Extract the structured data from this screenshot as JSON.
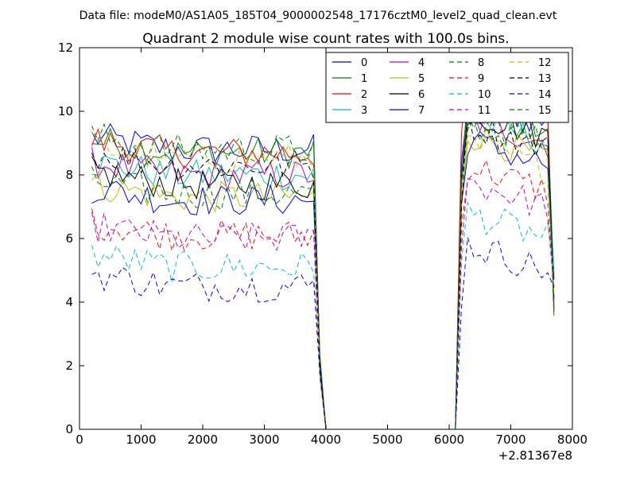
{
  "chart_data": {
    "type": "line",
    "supertitle": "Data file: modeM0/AS1A05_185T04_9000002548_17176cztM0_level2_quad_clean.evt",
    "title": "Quadrant 2 module wise count rates with 100.0s bins.",
    "xlabel": "",
    "ylabel": "",
    "x_offset_label": "+2.81367e8",
    "xlim": [
      0,
      8000
    ],
    "ylim": [
      0,
      12
    ],
    "x_ticks": [
      0,
      1000,
      2000,
      3000,
      4000,
      5000,
      6000,
      7000,
      8000
    ],
    "y_ticks": [
      0,
      2,
      4,
      6,
      8,
      10,
      12
    ],
    "legend_position": "top-right",
    "segments": [
      {
        "x_start": 200,
        "x_end": 3800,
        "step": 100
      },
      {
        "x_start": 6300,
        "x_end": 7600,
        "step": 100
      }
    ],
    "gap": {
      "x": [
        3900,
        4000,
        4100,
        6000,
        6100,
        6200
      ],
      "y": [
        2.0,
        0.0,
        0.0,
        0.0,
        0.0,
        8.5
      ]
    },
    "end": {
      "x": [
        7700
      ],
      "y_drop": 3.5
    },
    "series": [
      {
        "name": "0",
        "color": "#0000ff",
        "dash": "solid",
        "level1": 8.8,
        "level2": 9.6
      },
      {
        "name": "1",
        "color": "#008000",
        "dash": "solid",
        "level1": 8.7,
        "level2": 9.5
      },
      {
        "name": "2",
        "color": "#ff0000",
        "dash": "solid",
        "level1": 8.7,
        "level2": 10.4
      },
      {
        "name": "3",
        "color": "#00bfbf",
        "dash": "solid",
        "level1": 8.0,
        "level2": 9.0
      },
      {
        "name": "4",
        "color": "#bf00bf",
        "dash": "solid",
        "level1": 8.0,
        "level2": 9.0
      },
      {
        "name": "5",
        "color": "#bfbf00",
        "dash": "solid",
        "level1": 7.3,
        "level2": 8.5
      },
      {
        "name": "6",
        "color": "#000000",
        "dash": "solid",
        "level1": 7.7,
        "level2": 9.2
      },
      {
        "name": "7",
        "color": "#0000ff",
        "dash": "solid",
        "level1": 7.2,
        "level2": 8.3
      },
      {
        "name": "8",
        "color": "#008000",
        "dash": "dashed",
        "level1": 7.4,
        "level2": 8.8
      },
      {
        "name": "9",
        "color": "#ff0000",
        "dash": "dashed",
        "level1": 6.1,
        "level2": 7.5
      },
      {
        "name": "10",
        "color": "#00bfbf",
        "dash": "dashed",
        "level1": 5.1,
        "level2": 6.0
      },
      {
        "name": "11",
        "color": "#bf00bf",
        "dash": "dashed",
        "level1": 6.0,
        "level2": 7.0
      },
      {
        "name": "12",
        "color": "#bfbf00",
        "dash": "dashed",
        "level1": 8.5,
        "level2": 8.2
      },
      {
        "name": "13",
        "color": "#000000",
        "dash": "dashed",
        "level1": 8.3,
        "level2": 8.8
      },
      {
        "name": "14",
        "color": "#0000ff",
        "dash": "dashed",
        "level1": 4.5,
        "level2": 5.0
      },
      {
        "name": "15",
        "color": "#008000",
        "dash": "dashed",
        "level1": 8.8,
        "level2": 9.0
      }
    ]
  }
}
